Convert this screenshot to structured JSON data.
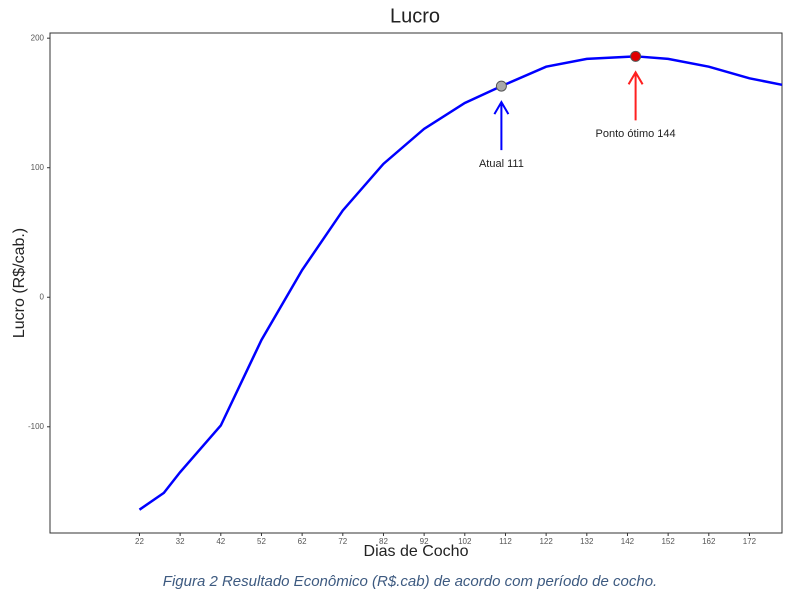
{
  "chart_data": {
    "type": "line",
    "title": "Lucro",
    "x_label": "Dias de Cocho",
    "y_label": "Lucro (R$/cab.)",
    "x": [
      22,
      28,
      32,
      42,
      52,
      62,
      72,
      82,
      92,
      102,
      111,
      122,
      132,
      144,
      152,
      162,
      172,
      180
    ],
    "series": [
      {
        "name": "Lucro",
        "color": "#0000ff",
        "values": [
          -164,
          -151,
          -135,
          -99,
          -33,
          21,
          67,
          103,
          130,
          150,
          163,
          178,
          184,
          186,
          184,
          178,
          169,
          164
        ]
      }
    ],
    "xlim": [
      0,
      180
    ],
    "xticks": [
      22,
      32,
      42,
      52,
      62,
      72,
      82,
      92,
      102,
      112,
      122,
      132,
      142,
      152,
      162,
      172
    ],
    "ylim": [
      -182,
      204
    ],
    "yticks": [
      -100,
      0,
      100,
      200
    ],
    "grid": true,
    "markers": [
      {
        "x": 111,
        "y": 163,
        "color": "#a9a9a9",
        "arrow_color": "#0000ff",
        "label": "Atual 111"
      },
      {
        "x": 144,
        "y": 186,
        "color": "#e00000",
        "arrow_color": "#ff2020",
        "label": "Ponto ótimo 144"
      }
    ]
  },
  "caption": "Figura 2 Resultado Econômico (R$.cab)  de acordo com período de cocho."
}
